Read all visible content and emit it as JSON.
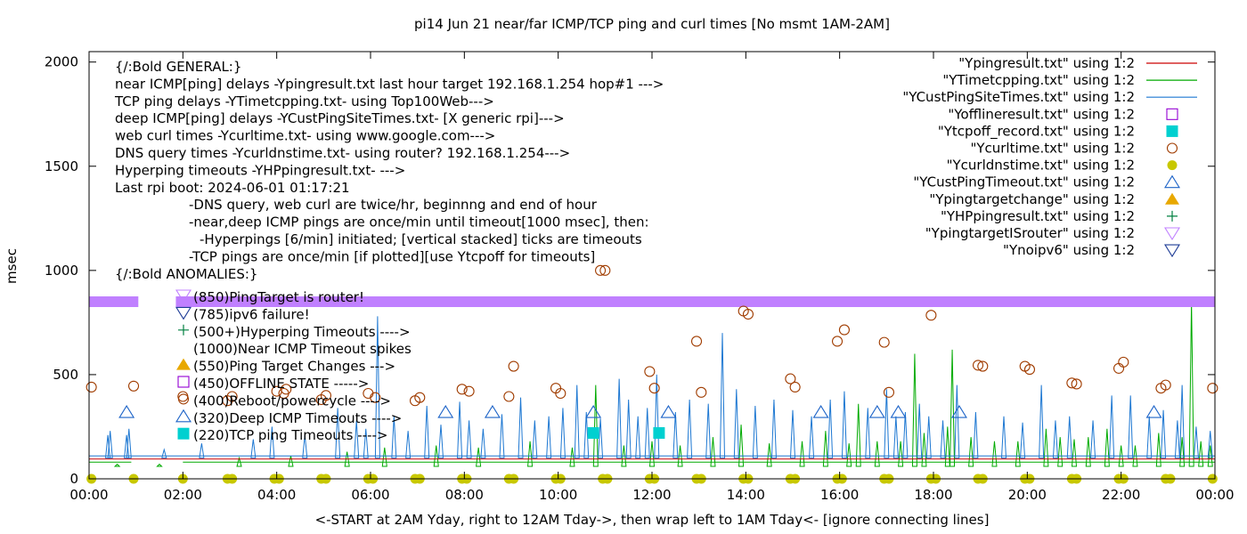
{
  "chart_data": {
    "type": "line",
    "title": "pi14 Jun 21  near/far ICMP/TCP ping and curl times [No msmt 1AM-2AM]",
    "xlabel": "<-START at 2AM Yday, right to 12AM Tday->, then wrap left to 1AM Tday<- [ignore connecting lines]",
    "ylabel": "msec",
    "x_unit": "hours",
    "xlim": [
      0,
      24
    ],
    "ylim": [
      0,
      2050
    ],
    "grid": false,
    "legend_placement": "top-right",
    "x_ticks": [
      {
        "value": 0,
        "label": "00:00"
      },
      {
        "value": 2,
        "label": "02:00"
      },
      {
        "value": 4,
        "label": "04:00"
      },
      {
        "value": 6,
        "label": "06:00"
      },
      {
        "value": 8,
        "label": "08:00"
      },
      {
        "value": 10,
        "label": "10:00"
      },
      {
        "value": 12,
        "label": "12:00"
      },
      {
        "value": 14,
        "label": "14:00"
      },
      {
        "value": 16,
        "label": "16:00"
      },
      {
        "value": 18,
        "label": "18:00"
      },
      {
        "value": 20,
        "label": "20:00"
      },
      {
        "value": 22,
        "label": "22:00"
      },
      {
        "value": 24,
        "label": "00:00"
      }
    ],
    "y_ticks": [
      {
        "value": 0,
        "label": "0"
      },
      {
        "value": 500,
        "label": "500"
      },
      {
        "value": 1000,
        "label": "1000"
      },
      {
        "value": 1500,
        "label": "1500"
      },
      {
        "value": 2000,
        "label": "2000"
      }
    ],
    "legend": [
      {
        "label": "\"Ypingresult.txt\" using 1:2",
        "kind": "line",
        "color": "#cc0000"
      },
      {
        "label": "\"YTimetcpping.txt\" using 1:2",
        "kind": "line",
        "color": "#00aa00"
      },
      {
        "label": "\"YCustPingSiteTimes.txt\" using 1:2",
        "kind": "line",
        "color": "#1e78d2"
      },
      {
        "label": "\"Yofflineresult.txt\" using 1:2",
        "kind": "open-square",
        "color": "#9400d3"
      },
      {
        "label": "\"Ytcpoff_record.txt\" using 1:2",
        "kind": "filled-square",
        "color": "#00d0d0"
      },
      {
        "label": "\"Ycurltime.txt\" using 1:2",
        "kind": "open-circle",
        "color": "#a03c00"
      },
      {
        "label": "\"Ycurldnstime.txt\" using 1:2",
        "kind": "filled-circle",
        "color": "#c8c800"
      },
      {
        "label": "\"YCustPingTimeout.txt\" using 1:2",
        "kind": "open-triangle-up",
        "color": "#1e64c8"
      },
      {
        "label": "\"Ypingtargetchange\" using 1:2",
        "kind": "filled-triangle-up",
        "color": "#e8a800"
      },
      {
        "label": "\"YHPpingresult.txt\" using 1:2",
        "kind": "plus",
        "color": "#008040"
      },
      {
        "label": "\"YpingtargetISrouter\" using 1:2",
        "kind": "open-triangle-down",
        "color": "#c080ff"
      },
      {
        "label": "\"Ynoipv6\" using 1:2",
        "kind": "open-triangle-down",
        "color": "#1e3c96"
      }
    ],
    "annotation_lines": [
      {
        "text": "{/:Bold GENERAL:}"
      },
      {
        "text": "near ICMP[ping] delays -Ypingresult.txt last hour target 192.168.1.254 hop#1 --->"
      },
      {
        "text": "TCP ping delays -YTimetcpping.txt- using Top100Web--->"
      },
      {
        "text": "deep ICMP[ping] delays -YCustPingSiteTimes.txt- [X generic rpi]--->"
      },
      {
        "text": "web curl times -Ycurltime.txt- using www.google.com--->"
      },
      {
        "text": "DNS query times -Ycurldnstime.txt- using router? 192.168.1.254--->"
      },
      {
        "text": "Hyperping timeouts -YHPpingresult.txt- --->"
      },
      {
        "text": "Last rpi boot: 2024-06-01 01:17:21"
      },
      {
        "text": "-DNS query, web curl are twice/hr, beginnng and end of hour",
        "indent": 2
      },
      {
        "text": "-near,deep ICMP pings are once/min until timeout[1000 msec], then:",
        "indent": 2
      },
      {
        "text": "-Hyperpings [6/min] initiated; [vertical stacked] ticks are timeouts",
        "indent": 3
      },
      {
        "text": "-TCP pings are once/min [if plotted][use Ytcpoff for timeouts]",
        "indent": 2
      },
      {
        "text": "{/:Bold ANOMALIES:}"
      }
    ],
    "anomaly_items": [
      {
        "marker": "open-triangle-down",
        "color": "#c080ff",
        "text": "(850)PingTarget is router!"
      },
      {
        "marker": "open-triangle-down",
        "color": "#1e3c96",
        "text": "(785)ipv6 failure!"
      },
      {
        "marker": "plus",
        "color": "#008040",
        "text": "(500+)Hyperping Timeouts ---->"
      },
      {
        "marker": "none",
        "color": "#000000",
        "text": "(1000)Near ICMP Timeout spikes"
      },
      {
        "marker": "filled-triangle-up",
        "color": "#e8a800",
        "text": "(550)Ping Target Changes --->"
      },
      {
        "marker": "open-square",
        "color": "#9400d3",
        "text": "(450)OFFLINE STATE ----->"
      },
      {
        "marker": "open-circle",
        "color": "#a03c00",
        "text": "(400)Reboot/powercycle ---->"
      },
      {
        "marker": "open-triangle-up",
        "color": "#1e64c8",
        "text": "(320)Deep ICMP Timeouts ---->"
      },
      {
        "marker": "filled-square",
        "color": "#00d0d0",
        "text": "(220)TCP ping Timeouts ---->"
      }
    ],
    "series": [
      {
        "name": "\"Ycurltime.txt\" using 1:2",
        "marker": "open-circle",
        "color": "#a03c00",
        "points": [
          [
            0.05,
            440
          ],
          [
            0.95,
            445
          ],
          [
            2.0,
            395
          ],
          [
            2.95,
            375
          ],
          [
            3.05,
            395
          ],
          [
            4.0,
            420
          ],
          [
            4.15,
            410
          ],
          [
            4.2,
            430
          ],
          [
            4.95,
            380
          ],
          [
            5.05,
            400
          ],
          [
            5.95,
            410
          ],
          [
            6.1,
            390
          ],
          [
            6.95,
            375
          ],
          [
            7.05,
            390
          ],
          [
            7.95,
            430
          ],
          [
            8.1,
            420
          ],
          [
            8.95,
            395
          ],
          [
            9.05,
            540
          ],
          [
            9.95,
            435
          ],
          [
            10.05,
            410
          ],
          [
            10.9,
            1000
          ],
          [
            11.0,
            1000
          ],
          [
            11.95,
            515
          ],
          [
            12.05,
            435
          ],
          [
            12.95,
            660
          ],
          [
            13.05,
            415
          ],
          [
            13.95,
            805
          ],
          [
            14.05,
            790
          ],
          [
            14.95,
            480
          ],
          [
            15.05,
            440
          ],
          [
            15.95,
            660
          ],
          [
            16.1,
            715
          ],
          [
            16.95,
            655
          ],
          [
            17.05,
            415
          ],
          [
            17.95,
            785
          ],
          [
            18.95,
            545
          ],
          [
            19.05,
            540
          ],
          [
            19.95,
            540
          ],
          [
            20.05,
            525
          ],
          [
            20.95,
            460
          ],
          [
            21.05,
            455
          ],
          [
            21.95,
            530
          ],
          [
            22.05,
            560
          ],
          [
            22.85,
            435
          ],
          [
            22.95,
            450
          ],
          [
            23.95,
            435
          ]
        ]
      },
      {
        "name": "\"Ycurldnstime.txt\" using 1:2",
        "marker": "filled-circle",
        "color": "#c8c800",
        "points": [
          [
            0.05,
            0
          ],
          [
            0.95,
            0
          ],
          [
            2.0,
            0
          ],
          [
            2.95,
            0
          ],
          [
            3.05,
            0
          ],
          [
            3.95,
            0
          ],
          [
            4.05,
            0
          ],
          [
            4.95,
            0
          ],
          [
            5.05,
            0
          ],
          [
            5.95,
            0
          ],
          [
            6.05,
            0
          ],
          [
            6.95,
            0
          ],
          [
            7.05,
            0
          ],
          [
            7.95,
            0
          ],
          [
            8.05,
            0
          ],
          [
            8.95,
            0
          ],
          [
            9.05,
            0
          ],
          [
            9.95,
            0
          ],
          [
            10.05,
            0
          ],
          [
            10.95,
            0
          ],
          [
            11.05,
            0
          ],
          [
            11.95,
            0
          ],
          [
            12.05,
            0
          ],
          [
            12.95,
            0
          ],
          [
            13.05,
            0
          ],
          [
            13.95,
            0
          ],
          [
            14.05,
            0
          ],
          [
            14.95,
            0
          ],
          [
            15.05,
            0
          ],
          [
            15.95,
            0
          ],
          [
            16.05,
            0
          ],
          [
            16.95,
            0
          ],
          [
            17.05,
            0
          ],
          [
            17.95,
            0
          ],
          [
            18.05,
            0
          ],
          [
            18.95,
            0
          ],
          [
            19.05,
            0
          ],
          [
            19.95,
            0
          ],
          [
            20.05,
            0
          ],
          [
            20.95,
            0
          ],
          [
            21.05,
            0
          ],
          [
            21.95,
            0
          ],
          [
            22.05,
            0
          ],
          [
            22.95,
            0
          ],
          [
            23.05,
            0
          ],
          [
            23.95,
            0
          ]
        ]
      },
      {
        "name": "\"YCustPingTimeout.txt\" using 1:2",
        "marker": "open-triangle-up",
        "color": "#1e64c8",
        "points": [
          [
            0.8,
            320
          ],
          [
            7.6,
            320
          ],
          [
            8.6,
            320
          ],
          [
            10.75,
            320
          ],
          [
            12.35,
            320
          ],
          [
            15.6,
            320
          ],
          [
            16.8,
            320
          ],
          [
            17.25,
            320
          ],
          [
            18.55,
            320
          ],
          [
            22.7,
            320
          ]
        ]
      },
      {
        "name": "\"Ytcpoff_record.txt\" using 1:2",
        "marker": "filled-square",
        "color": "#00d0d0",
        "points": [
          [
            10.75,
            220
          ],
          [
            12.15,
            220
          ]
        ]
      }
    ],
    "spikes": [
      {
        "name": "\"YCustPingSiteTimes.txt\" using 1:2",
        "color": "#1e78d2",
        "baseline": 100,
        "points": [
          [
            0.4,
            210
          ],
          [
            0.45,
            230
          ],
          [
            0.8,
            210
          ],
          [
            0.85,
            240
          ],
          [
            1.6,
            140
          ],
          [
            2.4,
            170
          ],
          [
            3.5,
            190
          ],
          [
            3.9,
            250
          ],
          [
            4.6,
            210
          ],
          [
            5.3,
            340
          ],
          [
            5.7,
            280
          ],
          [
            5.9,
            240
          ],
          [
            6.15,
            780
          ],
          [
            6.5,
            300
          ],
          [
            6.8,
            230
          ],
          [
            7.2,
            350
          ],
          [
            7.5,
            260
          ],
          [
            7.9,
            370
          ],
          [
            8.1,
            280
          ],
          [
            8.4,
            240
          ],
          [
            8.8,
            310
          ],
          [
            9.2,
            390
          ],
          [
            9.5,
            280
          ],
          [
            9.8,
            300
          ],
          [
            10.1,
            340
          ],
          [
            10.4,
            450
          ],
          [
            10.6,
            320
          ],
          [
            10.9,
            290
          ],
          [
            11.3,
            480
          ],
          [
            11.5,
            380
          ],
          [
            11.7,
            300
          ],
          [
            11.9,
            340
          ],
          [
            12.1,
            500
          ],
          [
            12.5,
            320
          ],
          [
            12.8,
            380
          ],
          [
            13.2,
            360
          ],
          [
            13.5,
            700
          ],
          [
            13.8,
            430
          ],
          [
            14.2,
            350
          ],
          [
            14.6,
            380
          ],
          [
            15.0,
            330
          ],
          [
            15.4,
            300
          ],
          [
            15.8,
            380
          ],
          [
            16.1,
            420
          ],
          [
            16.6,
            340
          ],
          [
            17.0,
            430
          ],
          [
            17.2,
            300
          ],
          [
            17.4,
            320
          ],
          [
            17.7,
            360
          ],
          [
            17.9,
            300
          ],
          [
            18.2,
            280
          ],
          [
            18.5,
            450
          ],
          [
            18.9,
            320
          ],
          [
            19.5,
            300
          ],
          [
            19.9,
            270
          ],
          [
            20.3,
            450
          ],
          [
            20.6,
            280
          ],
          [
            20.9,
            300
          ],
          [
            21.4,
            280
          ],
          [
            21.8,
            400
          ],
          [
            22.2,
            400
          ],
          [
            22.6,
            300
          ],
          [
            22.9,
            330
          ],
          [
            23.2,
            280
          ],
          [
            23.3,
            450
          ],
          [
            23.6,
            250
          ],
          [
            23.9,
            230
          ]
        ]
      },
      {
        "name": "\"YTimetcpping.txt\" using 1:2",
        "color": "#00aa00",
        "baseline": 60,
        "points": [
          [
            0.6,
            70
          ],
          [
            1.5,
            70
          ],
          [
            3.2,
            100
          ],
          [
            4.3,
            110
          ],
          [
            5.5,
            130
          ],
          [
            6.3,
            150
          ],
          [
            7.4,
            160
          ],
          [
            8.3,
            150
          ],
          [
            9.4,
            180
          ],
          [
            10.3,
            150
          ],
          [
            10.8,
            450
          ],
          [
            11.4,
            160
          ],
          [
            12.0,
            180
          ],
          [
            12.6,
            160
          ],
          [
            13.3,
            200
          ],
          [
            13.9,
            260
          ],
          [
            14.5,
            170
          ],
          [
            15.2,
            180
          ],
          [
            15.7,
            230
          ],
          [
            16.2,
            170
          ],
          [
            16.4,
            360
          ],
          [
            16.8,
            180
          ],
          [
            17.3,
            180
          ],
          [
            17.6,
            600
          ],
          [
            17.8,
            220
          ],
          [
            18.3,
            250
          ],
          [
            18.4,
            620
          ],
          [
            18.8,
            200
          ],
          [
            19.3,
            180
          ],
          [
            19.8,
            180
          ],
          [
            20.4,
            240
          ],
          [
            20.7,
            200
          ],
          [
            21.0,
            190
          ],
          [
            21.3,
            200
          ],
          [
            21.7,
            240
          ],
          [
            22.0,
            160
          ],
          [
            22.3,
            160
          ],
          [
            22.8,
            220
          ],
          [
            23.3,
            200
          ],
          [
            23.5,
            850
          ],
          [
            23.7,
            180
          ],
          [
            23.9,
            160
          ]
        ]
      }
    ],
    "baselines": [
      {
        "name": "\"Ypingresult.txt\" using 1:2",
        "color": "#cc0000",
        "value": 95
      },
      {
        "name": "\"YTimetcpping.txt\" using 1:2",
        "color": "#00aa00",
        "value": 80,
        "segments": [
          [
            0.0,
            0.9
          ],
          [
            2.0,
            24.0
          ]
        ]
      },
      {
        "name": "\"YCustPingSiteTimes.txt\" using 1:2",
        "color": "#1e78d2",
        "value": 110
      }
    ],
    "router_band": {
      "name": "\"YpingtargetISrouter\" using 1:2",
      "value": 850,
      "color": "#c080ff",
      "segments": [
        [
          0.0,
          1.05
        ],
        [
          1.85,
          24.0
        ]
      ]
    }
  }
}
